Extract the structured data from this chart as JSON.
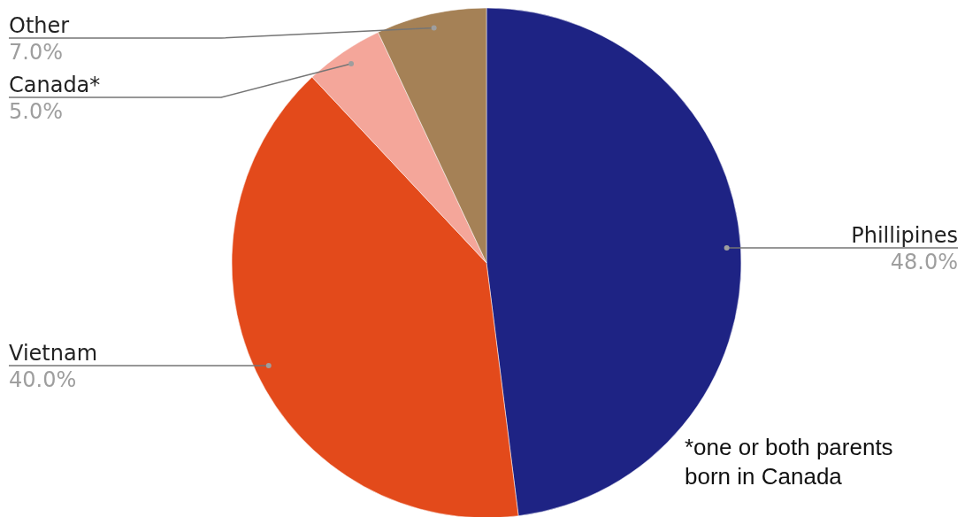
{
  "chart_data": {
    "type": "pie",
    "categories": [
      "Phillipines",
      "Vietnam",
      "Canada*",
      "Other"
    ],
    "values": [
      48.0,
      40.0,
      5.0,
      7.0
    ],
    "colors": [
      "#1e2384",
      "#e34a1b",
      "#f4a69a",
      "#a58156"
    ],
    "value_labels": [
      "48.0%",
      "40.0%",
      "5.0%",
      "7.0%"
    ],
    "annotations": [
      "*one or both parents born in Canada"
    ]
  }
}
